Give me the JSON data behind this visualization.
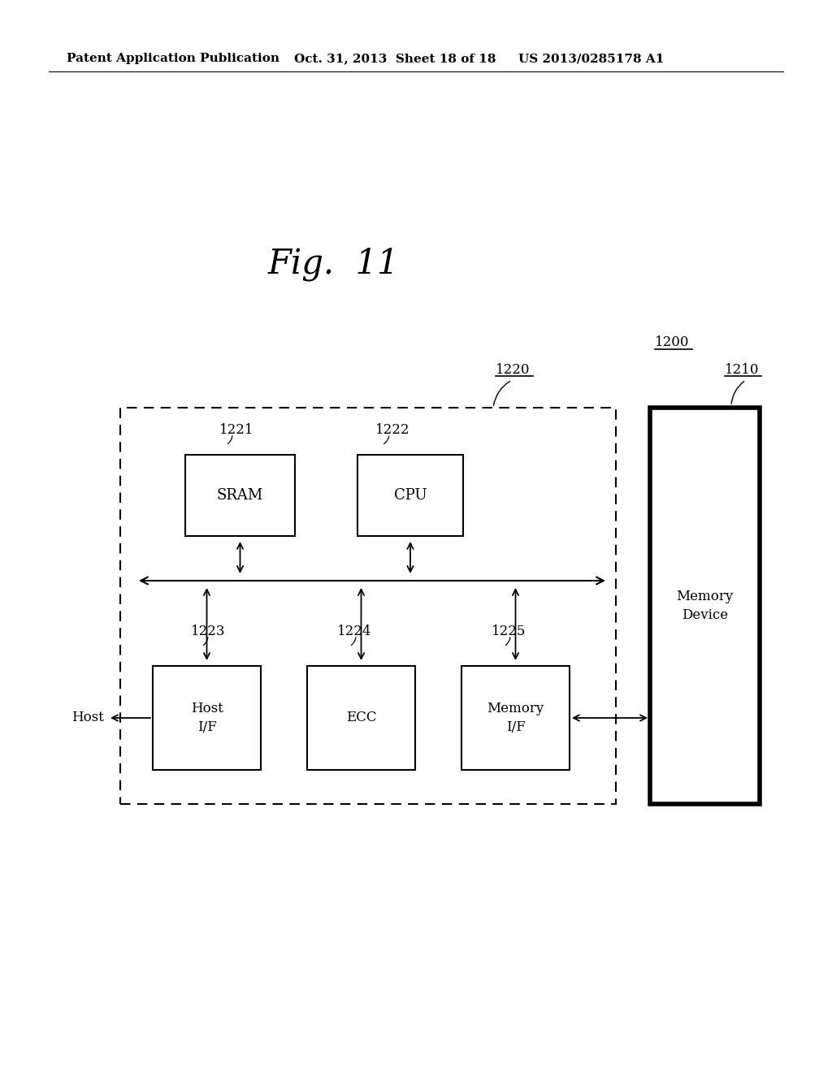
{
  "bg_color": "#ffffff",
  "fig_title": "Fig.  11",
  "header_left": "Patent Application Publication",
  "header_mid": "Oct. 31, 2013  Sheet 18 of 18",
  "header_right": "US 2013/0285178 A1",
  "label_1200": "1200",
  "label_1210": "1210",
  "label_1220": "1220",
  "label_1221": "1221",
  "label_1222": "1222",
  "label_1223": "1223",
  "label_1224": "1224",
  "label_1225": "1225",
  "label_host": "Host",
  "box_sram": "SRAM",
  "box_cpu": "CPU",
  "box_host_if": "Host\nI/F",
  "box_ecc": "ECC",
  "box_mem_if": "Memory\nI/F",
  "box_mem_dev": "Memory\nDevice"
}
